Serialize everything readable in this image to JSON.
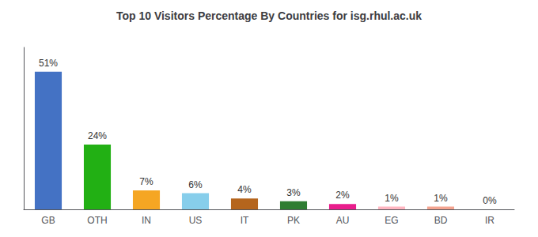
{
  "chart_data": {
    "type": "bar",
    "title": "Top 10 Visitors Percentage By Countries for isg.rhul.ac.uk",
    "categories": [
      "GB",
      "OTH",
      "IN",
      "US",
      "IT",
      "PK",
      "AU",
      "EG",
      "BD",
      "IR"
    ],
    "values": [
      51,
      24,
      7,
      6,
      4,
      3,
      2,
      1,
      1,
      0
    ],
    "value_labels": [
      "51%",
      "24%",
      "7%",
      "6%",
      "4%",
      "3%",
      "2%",
      "1%",
      "1%",
      "0%"
    ],
    "colors": [
      "#4472c4",
      "#22b014",
      "#f5a623",
      "#87ceeb",
      "#b5651d",
      "#2e7d32",
      "#e91e8c",
      "#ffb6c1",
      "#f4a490",
      "#ffcccc"
    ],
    "ylim": [
      0,
      60
    ],
    "grid": false,
    "data_labels": true,
    "tick_labels": "x"
  }
}
